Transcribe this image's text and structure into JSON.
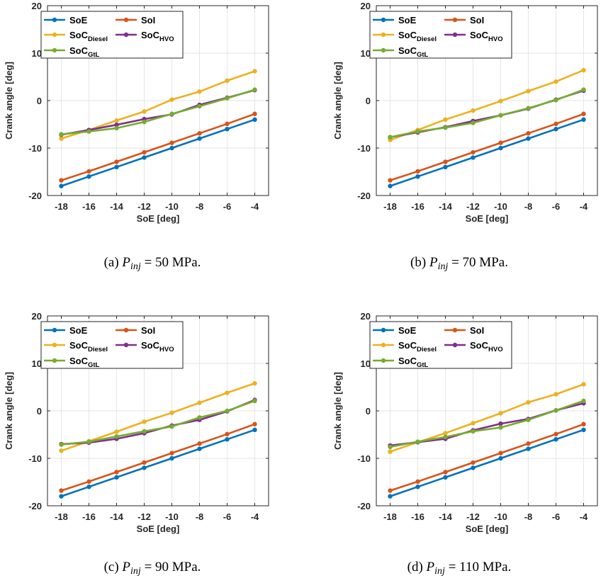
{
  "chart_data": [
    {
      "type": "line",
      "caption": {
        "prefix": "(a) ",
        "var": "P",
        "sub": "inj",
        "rest": " = 50 MPa."
      },
      "xlabel": "SoE [deg]",
      "ylabel": "Crank angle [deg]",
      "xlim": [
        -19,
        -3
      ],
      "ylim": [
        -20,
        20
      ],
      "xticks": [
        -18,
        -16,
        -14,
        -12,
        -10,
        -8,
        -6,
        -4
      ],
      "yticks": [
        -20,
        -10,
        0,
        10,
        20
      ],
      "grid": true,
      "legend_position": "top-left",
      "x": [
        -18,
        -16,
        -14,
        -12,
        -10,
        -8,
        -6,
        -4
      ],
      "series": [
        {
          "name": "SoE",
          "main": "SoE",
          "sub": "",
          "color": "#0072BD",
          "values": [
            -18,
            -16,
            -14,
            -12,
            -10,
            -8,
            -6,
            -4
          ]
        },
        {
          "name": "SoI",
          "main": "SoI",
          "sub": "",
          "color": "#D95319",
          "values": [
            -16.8,
            -14.9,
            -12.9,
            -10.9,
            -8.9,
            -6.9,
            -4.9,
            -2.8
          ]
        },
        {
          "name": "SoC Diesel",
          "main": "SoC",
          "sub": "Diesel",
          "color": "#EDB120",
          "values": [
            -8.0,
            -6.2,
            -4.2,
            -2.3,
            0.2,
            1.9,
            4.2,
            6.2
          ]
        },
        {
          "name": "SoC HVO",
          "main": "SoC",
          "sub": "HVO",
          "color": "#7E2F8E",
          "values": [
            -7.2,
            -6.2,
            -5.1,
            -3.9,
            -2.9,
            -0.9,
            0.6,
            2.2
          ]
        },
        {
          "name": "SoC GtL",
          "main": "SoC",
          "sub": "GtL",
          "color": "#77AC30",
          "values": [
            -7.1,
            -6.5,
            -5.8,
            -4.5,
            -2.8,
            -1.2,
            0.5,
            2.3
          ]
        }
      ]
    },
    {
      "type": "line",
      "caption": {
        "prefix": "(b) ",
        "var": "P",
        "sub": "inj",
        "rest": " = 70 MPa."
      },
      "xlabel": "SoE [deg]",
      "ylabel": "Crank angle [deg]",
      "xlim": [
        -19,
        -3
      ],
      "ylim": [
        -20,
        20
      ],
      "xticks": [
        -18,
        -16,
        -14,
        -12,
        -10,
        -8,
        -6,
        -4
      ],
      "yticks": [
        -20,
        -10,
        0,
        10,
        20
      ],
      "grid": true,
      "legend_position": "top-left",
      "x": [
        -18,
        -16,
        -14,
        -12,
        -10,
        -8,
        -6,
        -4
      ],
      "series": [
        {
          "name": "SoE",
          "main": "SoE",
          "sub": "",
          "color": "#0072BD",
          "values": [
            -18,
            -16,
            -14,
            -12,
            -10,
            -8,
            -6,
            -4
          ]
        },
        {
          "name": "SoI",
          "main": "SoI",
          "sub": "",
          "color": "#D95319",
          "values": [
            -16.8,
            -14.9,
            -12.9,
            -10.9,
            -8.9,
            -6.9,
            -4.9,
            -2.8
          ]
        },
        {
          "name": "SoC Diesel",
          "main": "SoC",
          "sub": "Diesel",
          "color": "#EDB120",
          "values": [
            -8.3,
            -6.2,
            -4.0,
            -2.1,
            -0.1,
            2.0,
            4.0,
            6.4
          ]
        },
        {
          "name": "SoC HVO",
          "main": "SoC",
          "sub": "HVO",
          "color": "#7E2F8E",
          "values": [
            -7.7,
            -6.7,
            -5.6,
            -4.3,
            -3.1,
            -1.7,
            0.2,
            2.1
          ]
        },
        {
          "name": "SoC GtL",
          "main": "SoC",
          "sub": "GtL",
          "color": "#77AC30",
          "values": [
            -7.7,
            -6.5,
            -5.7,
            -4.7,
            -3.1,
            -1.6,
            0.1,
            2.3
          ]
        }
      ]
    },
    {
      "type": "line",
      "caption": {
        "prefix": "(c) ",
        "var": "P",
        "sub": "inj",
        "rest": " = 90 MPa."
      },
      "xlabel": "SoE [deg]",
      "ylabel": "Crank angle [deg]",
      "xlim": [
        -19,
        -3
      ],
      "ylim": [
        -20,
        20
      ],
      "xticks": [
        -18,
        -16,
        -14,
        -12,
        -10,
        -8,
        -6,
        -4
      ],
      "yticks": [
        -20,
        -10,
        0,
        10,
        20
      ],
      "grid": true,
      "legend_position": "top-left",
      "x": [
        -18,
        -16,
        -14,
        -12,
        -10,
        -8,
        -6,
        -4
      ],
      "series": [
        {
          "name": "SoE",
          "main": "SoE",
          "sub": "",
          "color": "#0072BD",
          "values": [
            -18,
            -16,
            -14,
            -12,
            -10,
            -8,
            -6,
            -4
          ]
        },
        {
          "name": "SoI",
          "main": "SoI",
          "sub": "",
          "color": "#D95319",
          "values": [
            -16.8,
            -14.9,
            -12.9,
            -10.9,
            -8.9,
            -6.9,
            -4.9,
            -2.8
          ]
        },
        {
          "name": "SoC Diesel",
          "main": "SoC",
          "sub": "Diesel",
          "color": "#EDB120",
          "values": [
            -8.4,
            -6.4,
            -4.4,
            -2.3,
            -0.4,
            1.7,
            3.8,
            5.8
          ]
        },
        {
          "name": "SoC HVO",
          "main": "SoC",
          "sub": "HVO",
          "color": "#7E2F8E",
          "values": [
            -7.0,
            -6.7,
            -5.9,
            -4.7,
            -3.1,
            -1.9,
            -0.1,
            2.3
          ]
        },
        {
          "name": "SoC GtL",
          "main": "SoC",
          "sub": "GtL",
          "color": "#77AC30",
          "values": [
            -7.1,
            -6.5,
            -5.4,
            -4.3,
            -3.3,
            -1.4,
            0.0,
            2.1
          ]
        }
      ]
    },
    {
      "type": "line",
      "caption": {
        "prefix": "(d) ",
        "var": "P",
        "sub": "inj",
        "rest": " = 110 MPa."
      },
      "xlabel": "SoE [deg]",
      "ylabel": "Crank angle [deg]",
      "xlim": [
        -19,
        -3
      ],
      "ylim": [
        -20,
        20
      ],
      "xticks": [
        -18,
        -16,
        -14,
        -12,
        -10,
        -8,
        -6,
        -4
      ],
      "yticks": [
        -20,
        -10,
        0,
        10,
        20
      ],
      "grid": true,
      "legend_position": "top-left",
      "x": [
        -18,
        -16,
        -14,
        -12,
        -10,
        -8,
        -6,
        -4
      ],
      "series": [
        {
          "name": "SoE",
          "main": "SoE",
          "sub": "",
          "color": "#0072BD",
          "values": [
            -18,
            -16,
            -14,
            -12,
            -10,
            -8,
            -6,
            -4
          ]
        },
        {
          "name": "SoI",
          "main": "SoI",
          "sub": "",
          "color": "#D95319",
          "values": [
            -16.8,
            -14.9,
            -12.9,
            -10.9,
            -8.9,
            -6.9,
            -4.9,
            -2.8
          ]
        },
        {
          "name": "SoC Diesel",
          "main": "SoC",
          "sub": "Diesel",
          "color": "#EDB120",
          "values": [
            -8.6,
            -6.6,
            -4.7,
            -2.6,
            -0.5,
            1.8,
            3.5,
            5.6
          ]
        },
        {
          "name": "SoC HVO",
          "main": "SoC",
          "sub": "HVO",
          "color": "#7E2F8E",
          "values": [
            -7.3,
            -6.6,
            -5.9,
            -4.1,
            -2.7,
            -1.7,
            0.1,
            1.6
          ]
        },
        {
          "name": "SoC GtL",
          "main": "SoC",
          "sub": "GtL",
          "color": "#77AC30",
          "values": [
            -7.6,
            -6.5,
            -5.5,
            -4.3,
            -3.5,
            -1.9,
            0.1,
            2.1
          ]
        }
      ]
    }
  ]
}
